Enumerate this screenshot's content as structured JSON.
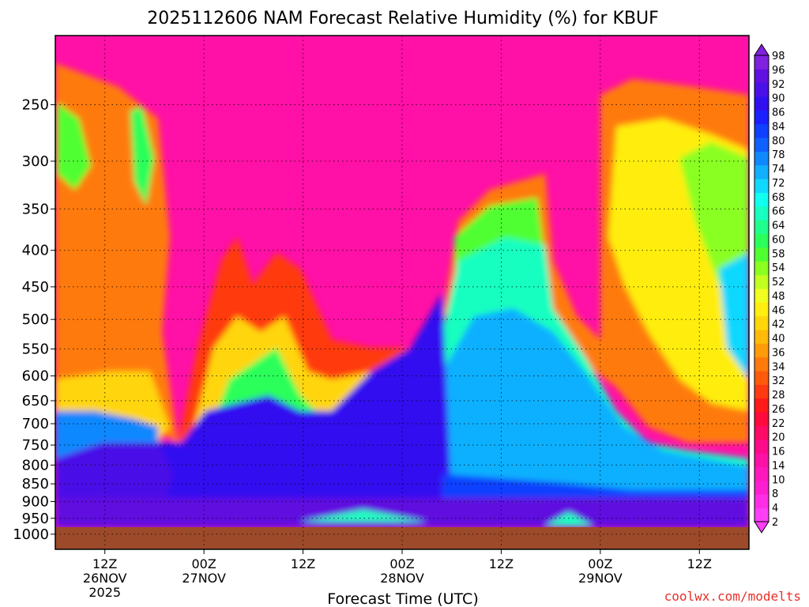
{
  "chart_data": {
    "type": "heatmap",
    "title": "2025112606 NAM Forecast Relative Humidity (%) for KBUF",
    "xlabel": "Forecast Time (UTC)",
    "ylabel": "",
    "credit": "coolwx.com/modelts",
    "y_levels": [
      "250",
      "300",
      "350",
      "400",
      "450",
      "500",
      "550",
      "600",
      "650",
      "700",
      "750",
      "800",
      "850",
      "900",
      "950",
      "1000"
    ],
    "y_values": [
      250,
      300,
      350,
      400,
      450,
      500,
      550,
      600,
      650,
      700,
      750,
      800,
      850,
      900,
      950,
      1000
    ],
    "x_ticks": [
      {
        "hour": 12,
        "label": "12Z",
        "date": "26NOV",
        "year": "2025"
      },
      {
        "hour": 24,
        "label": "00Z",
        "date": "27NOV",
        "year": ""
      },
      {
        "hour": 36,
        "label": "12Z",
        "date": "",
        "year": ""
      },
      {
        "hour": 48,
        "label": "00Z",
        "date": "28NOV",
        "year": ""
      },
      {
        "hour": 60,
        "label": "12Z",
        "date": "",
        "year": ""
      },
      {
        "hour": 72,
        "label": "00Z",
        "date": "29NOV",
        "year": ""
      },
      {
        "hour": 84,
        "label": "12Z",
        "date": "",
        "year": ""
      }
    ],
    "x_range_hours": [
      6,
      90
    ],
    "colorbar": {
      "levels": [
        "2",
        "4",
        "8",
        "10",
        "14",
        "16",
        "20",
        "22",
        "26",
        "28",
        "32",
        "34",
        "36",
        "40",
        "42",
        "46",
        "48",
        "52",
        "54",
        "58",
        "60",
        "64",
        "66",
        "68",
        "72",
        "74",
        "78",
        "80",
        "84",
        "86",
        "90",
        "92",
        "96",
        "98"
      ],
      "colors": [
        "#ff3ff8",
        "#ff2ee6",
        "#ff1fd2",
        "#ff18bc",
        "#ff10a6",
        "#ff0a8a",
        "#ff0a64",
        "#ff0a3c",
        "#ff1a1a",
        "#ff3a10",
        "#ff5a0a",
        "#ff7a0a",
        "#ff9a0a",
        "#ffba0a",
        "#ffd60a",
        "#ffee10",
        "#f0ff20",
        "#c0ff20",
        "#8aff20",
        "#50ff30",
        "#2aff5a",
        "#20ff8c",
        "#18ffc0",
        "#10fff0",
        "#10d8ff",
        "#10b0ff",
        "#1088ff",
        "#1060ff",
        "#1040ff",
        "#1a20ff",
        "#3010f0",
        "#4a10e8",
        "#6010e0",
        "#8020e0"
      ]
    },
    "grid": true
  }
}
